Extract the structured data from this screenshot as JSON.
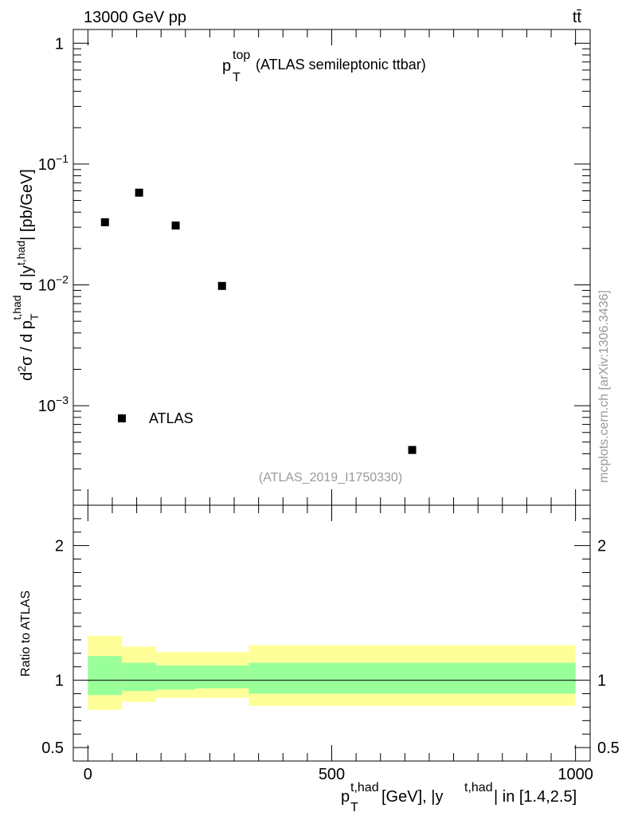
{
  "header": {
    "energy_label": "13000 GeV pp",
    "process_label": "tt̄"
  },
  "watermark": "mcplots.cern.ch [arXiv:1306.3436]",
  "analysis_id": "(ATLAS_2019_I1750330)",
  "colors": {
    "inner_band": "#99ff99",
    "outer_band": "#ffff99",
    "marker": "#000000"
  },
  "chart_data": [
    {
      "type": "scatter",
      "panel": "main",
      "title_main": "p",
      "title_sup": "top",
      "title_sub": "T",
      "title_rest": "(ATLAS semileptonic ttbar)",
      "ylabel": "d²σ / d p_T^{t,had} d |y^{t,had}| [pb/GeV]",
      "yscale": "log",
      "ylim": [
        0.00015,
        1.3
      ],
      "xlim": [
        -30,
        1030
      ],
      "ytick_labels": [
        "1",
        "10^-1",
        "10^-2",
        "10^-3"
      ],
      "legend": {
        "label": "ATLAS",
        "position": "bottom-left"
      },
      "series": [
        {
          "name": "ATLAS",
          "x": [
            35,
            105,
            180,
            275,
            665
          ],
          "y": [
            0.033,
            0.058,
            0.031,
            0.0098,
            0.00043
          ]
        }
      ]
    },
    {
      "type": "area",
      "panel": "ratio",
      "ylabel": "Ratio to ATLAS",
      "xlabel": "p_T^{t,had} [GeV], |y^{t,had}| in [1.4,2.5]",
      "xlabel_parts": {
        "p": "p",
        "sub": "T",
        "sup": "t,had",
        "middle": " [GeV], |y",
        "sup2": "t,had",
        "end": "| in [1.4,2.5]"
      },
      "ylim": [
        0.4,
        2.3
      ],
      "xlim": [
        -30,
        1030
      ],
      "ytick_labels": [
        "2",
        "1",
        "0.5"
      ],
      "xtick_labels": [
        "0",
        "500",
        "1000"
      ],
      "reference_line": 1,
      "bins": [
        {
          "xlow": 0,
          "xhigh": 70,
          "inner": [
            0.89,
            1.18
          ],
          "outer": [
            0.78,
            1.33
          ]
        },
        {
          "xlow": 70,
          "xhigh": 140,
          "inner": [
            0.92,
            1.13
          ],
          "outer": [
            0.84,
            1.25
          ]
        },
        {
          "xlow": 140,
          "xhigh": 220,
          "inner": [
            0.93,
            1.11
          ],
          "outer": [
            0.87,
            1.21
          ]
        },
        {
          "xlow": 220,
          "xhigh": 330,
          "inner": [
            0.94,
            1.11
          ],
          "outer": [
            0.87,
            1.21
          ]
        },
        {
          "xlow": 330,
          "xhigh": 1000,
          "inner": [
            0.9,
            1.13
          ],
          "outer": [
            0.81,
            1.26
          ]
        }
      ]
    }
  ]
}
